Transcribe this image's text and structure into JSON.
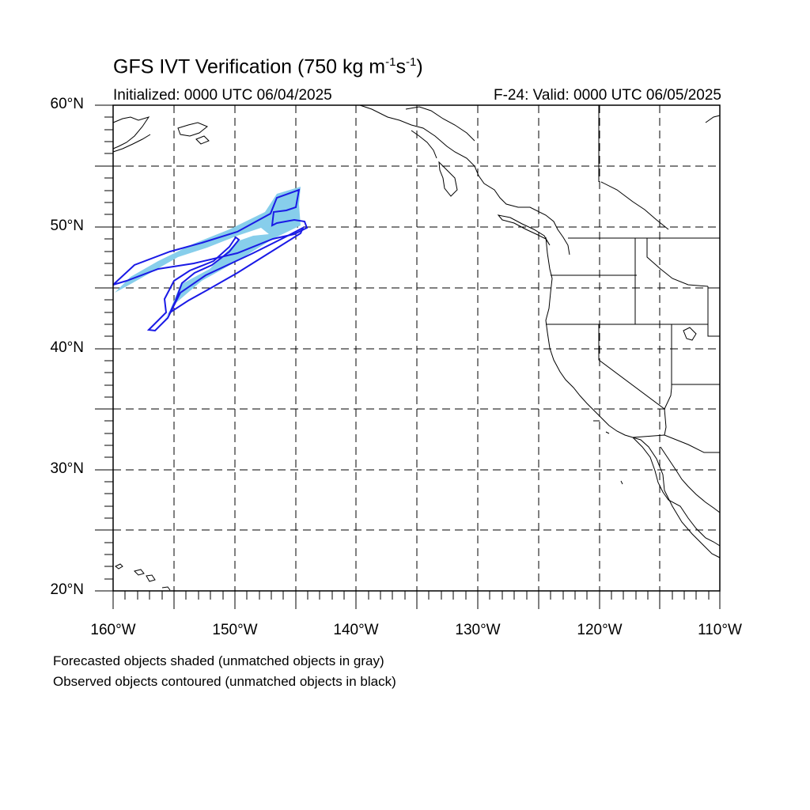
{
  "title": {
    "main": "GFS IVT Verification (750 kg m",
    "exp1": "-1",
    "mid": "s",
    "exp2": "-1",
    "close": ")"
  },
  "initialized": "Initialized: 0000 UTC 06/04/2025",
  "valid": "F-24: Valid: 0000 UTC 06/05/2025",
  "lat_labels": [
    "60°N",
    "50°N",
    "40°N",
    "30°N",
    "20°N"
  ],
  "lon_labels": [
    "160°W",
    "150°W",
    "140°W",
    "130°W",
    "120°W",
    "110°W"
  ],
  "notes": {
    "line1": "Forecasted objects shaded (unmatched objects in gray)",
    "line2": "Observed objects contoured (unmatched objects in black)"
  },
  "colors": {
    "forecast_fill": "#87ceeb",
    "observed_contour": "#1a1ae6",
    "coastline": "#000000",
    "grid": "#000000"
  },
  "map_extent": {
    "lon_min": -160,
    "lon_max": -110,
    "lat_min": 20,
    "lat_max": 60
  }
}
